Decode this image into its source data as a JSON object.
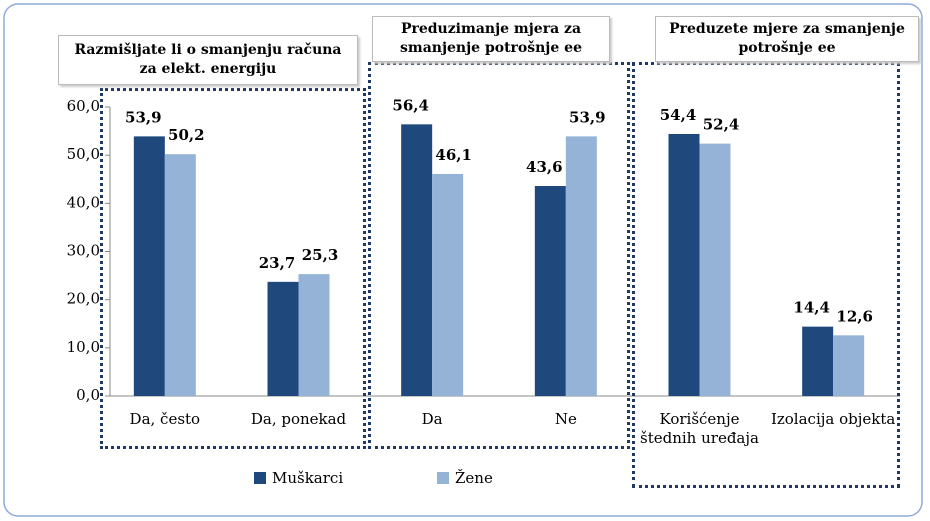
{
  "chart_data": {
    "type": "bar",
    "group_labels": [
      "Razmišljate li o smanjenju računa za elekt. energiju",
      "Preduzimanje mjera za smanjenje potrošnje ee",
      "Preduzete mjere za smanjenje potrošnje ee"
    ],
    "categories": [
      "Da, često",
      "Da, ponekad",
      "Da",
      "Ne",
      "Korišćenje štednih uređaja",
      "Izolacija objekta"
    ],
    "series": [
      {
        "name": "Muškarci",
        "color": "#1f497d",
        "values": [
          53.9,
          23.7,
          56.4,
          43.6,
          54.4,
          14.4
        ],
        "value_labels": [
          "53,9",
          "23,7",
          "56,4",
          "43,6",
          "54,4",
          "14,4"
        ]
      },
      {
        "name": "Žene",
        "color": "#95b3d7",
        "values": [
          50.2,
          25.3,
          46.1,
          53.9,
          52.4,
          12.6
        ],
        "value_labels": [
          "50,2",
          "25,3",
          "46,1",
          "53,9",
          "52,4",
          "12,6"
        ]
      }
    ],
    "ylim": [
      0,
      60
    ],
    "yticks": [
      {
        "value": 0,
        "label": "0,0"
      },
      {
        "value": 10,
        "label": "10,0"
      },
      {
        "value": 20,
        "label": "20,0"
      },
      {
        "value": 30,
        "label": "30,0"
      },
      {
        "value": 40,
        "label": "40,0"
      },
      {
        "value": 50,
        "label": "50,0"
      },
      {
        "value": 60,
        "label": "60,0"
      }
    ],
    "grid": false,
    "legend": "bottom"
  }
}
